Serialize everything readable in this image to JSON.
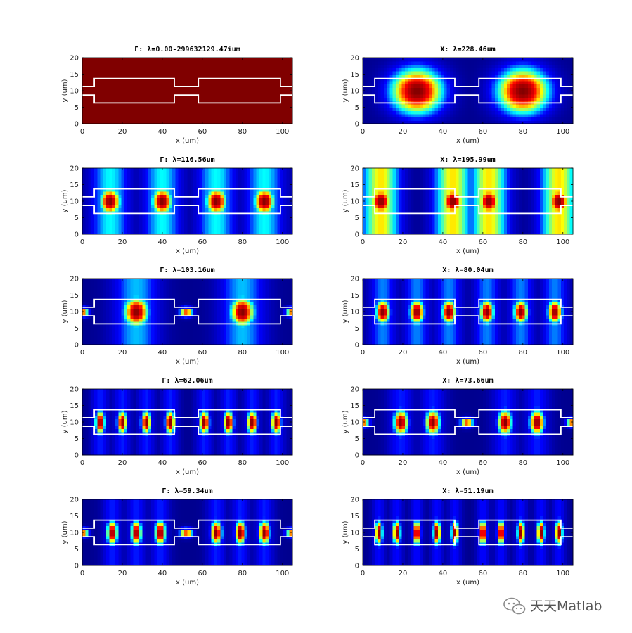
{
  "chart_data": [
    {
      "type": "heatmap",
      "title": "Γ: λ=0.00-299632129.47ium",
      "xlabel": "x (um)",
      "ylabel": "y (um)",
      "xlim": [
        0,
        105
      ],
      "ylim": [
        0,
        20
      ],
      "x_ticks": [
        0,
        20,
        40,
        60,
        80,
        100
      ],
      "y_ticks": [
        0,
        5,
        10,
        15,
        20
      ],
      "mode": "uniform"
    },
    {
      "type": "heatmap",
      "title": "X: λ=228.46um",
      "xlabel": "x (um)",
      "ylabel": "y (um)",
      "xlim": [
        0,
        105
      ],
      "ylim": [
        0,
        20
      ],
      "x_ticks": [
        0,
        20,
        40,
        60,
        80,
        100
      ],
      "y_ticks": [
        0,
        5,
        10,
        15,
        20
      ],
      "mode": "lobes",
      "peaks_x": [
        27,
        80
      ],
      "sx": 13,
      "sy": 7,
      "base": 0.28,
      "sidebands": false
    },
    {
      "type": "heatmap",
      "title": "Γ: λ=116.56um",
      "xlabel": "x (um)",
      "ylabel": "y (um)",
      "xlim": [
        0,
        105
      ],
      "ylim": [
        0,
        20
      ],
      "x_ticks": [
        0,
        20,
        40,
        60,
        80,
        100
      ],
      "y_ticks": [
        0,
        5,
        10,
        15,
        20
      ],
      "mode": "lobes",
      "peaks_x": [
        14,
        40,
        67,
        91
      ],
      "sx": 5,
      "sy": 4,
      "base": 0.4,
      "sidebands": true
    },
    {
      "type": "heatmap",
      "title": "X: λ=195.99um",
      "xlabel": "x (um)",
      "ylabel": "y (um)",
      "xlim": [
        0,
        105
      ],
      "ylim": [
        0,
        20
      ],
      "x_ticks": [
        0,
        20,
        40,
        60,
        80,
        100
      ],
      "y_ticks": [
        0,
        5,
        10,
        15,
        20
      ],
      "mode": "lobes",
      "peaks_x": [
        9,
        45,
        63,
        98
      ],
      "sx": 5,
      "sy": 4,
      "base": 0.62,
      "sidebands": true
    },
    {
      "type": "heatmap",
      "title": "Γ: λ=103.16um",
      "xlabel": "x (um)",
      "ylabel": "y (um)",
      "xlim": [
        0,
        105
      ],
      "ylim": [
        0,
        20
      ],
      "x_ticks": [
        0,
        20,
        40,
        60,
        80,
        100
      ],
      "y_ticks": [
        0,
        5,
        10,
        15,
        20
      ],
      "mode": "lobes",
      "peaks_x": [
        27,
        80
      ],
      "sx": 6,
      "sy": 4.5,
      "base": 0.35,
      "sidebands": true,
      "gap_glow": true
    },
    {
      "type": "heatmap",
      "title": "X: λ=80.04um",
      "xlabel": "x (um)",
      "ylabel": "y (um)",
      "xlim": [
        0,
        105
      ],
      "ylim": [
        0,
        20
      ],
      "x_ticks": [
        0,
        20,
        40,
        60,
        80,
        100
      ],
      "y_ticks": [
        0,
        5,
        10,
        15,
        20
      ],
      "mode": "lobes",
      "peaks_x": [
        10,
        27,
        43,
        62,
        79,
        96
      ],
      "sx": 3.5,
      "sy": 3.5,
      "base": 0.3,
      "sidebands": true
    },
    {
      "type": "heatmap",
      "title": "Γ: λ=62.06um",
      "xlabel": "x (um)",
      "ylabel": "y (um)",
      "xlim": [
        0,
        105
      ],
      "ylim": [
        0,
        20
      ],
      "x_ticks": [
        0,
        20,
        40,
        60,
        80,
        100
      ],
      "y_ticks": [
        0,
        5,
        10,
        15,
        20
      ],
      "mode": "lobes",
      "peaks_x": [
        9,
        20,
        32,
        44,
        61,
        73,
        85,
        97
      ],
      "sx": 2.4,
      "sy": 3.5,
      "base": 0.22,
      "sidebands": true
    },
    {
      "type": "heatmap",
      "title": "X: λ=73.66um",
      "xlabel": "x (um)",
      "ylabel": "y (um)",
      "xlim": [
        0,
        105
      ],
      "ylim": [
        0,
        20
      ],
      "x_ticks": [
        0,
        20,
        40,
        60,
        80,
        100
      ],
      "y_ticks": [
        0,
        5,
        10,
        15,
        20
      ],
      "mode": "lobes",
      "peaks_x": [
        19,
        35,
        71,
        87
      ],
      "sx": 3.5,
      "sy": 3.8,
      "base": 0.22,
      "sidebands": true,
      "gap_glow": true
    },
    {
      "type": "heatmap",
      "title": "Γ: λ=59.34um",
      "xlabel": "x (um)",
      "ylabel": "y (um)",
      "xlim": [
        0,
        105
      ],
      "ylim": [
        0,
        20
      ],
      "x_ticks": [
        0,
        20,
        40,
        60,
        80,
        100
      ],
      "y_ticks": [
        0,
        5,
        10,
        15,
        20
      ],
      "mode": "lobes",
      "peaks_x": [
        15,
        27,
        39,
        67,
        79,
        91
      ],
      "sx": 2.6,
      "sy": 3.7,
      "base": 0.22,
      "sidebands": true,
      "gap_glow": true
    },
    {
      "type": "heatmap",
      "title": "X: λ=51.19um",
      "xlabel": "x (um)",
      "ylabel": "y (um)",
      "xlim": [
        0,
        105
      ],
      "ylim": [
        0,
        20
      ],
      "x_ticks": [
        0,
        20,
        40,
        60,
        80,
        100
      ],
      "y_ticks": [
        0,
        5,
        10,
        15,
        20
      ],
      "mode": "lobes",
      "peaks_x": [
        8,
        17,
        27,
        37,
        46,
        60,
        69,
        79,
        89,
        98
      ],
      "sx": 1.8,
      "sy": 3.7,
      "base": 0.2,
      "sidebands": true
    }
  ],
  "waveguide_outline": {
    "color": "#ffffff",
    "path_x": [
      0,
      6,
      6,
      46,
      46,
      58,
      58,
      99,
      99,
      105
    ],
    "upper_y": [
      11.3,
      11.3,
      13.7,
      13.7,
      11.3,
      11.3,
      13.7,
      13.7,
      11.3,
      11.3
    ],
    "lower_y": [
      8.7,
      8.7,
      6.3,
      6.3,
      8.7,
      8.7,
      6.3,
      6.3,
      8.7,
      8.7
    ]
  },
  "colormap": [
    "#00008f",
    "#0000ff",
    "#00ffff",
    "#ffff00",
    "#ff0000",
    "#800000"
  ],
  "watermark": {
    "icon": "wechat-icon",
    "text": "天天Matlab"
  }
}
